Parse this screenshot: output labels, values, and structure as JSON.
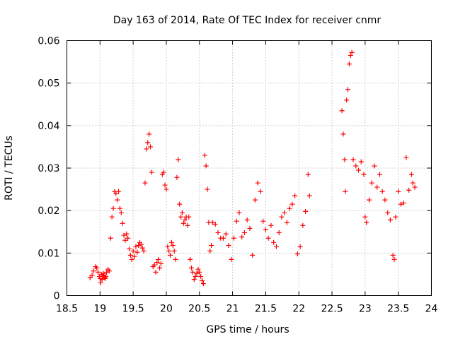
{
  "chart_data": {
    "type": "scatter",
    "title": "Day 163 of 2014, Rate Of TEC Index for receiver cnmr",
    "xlabel": "GPS time / hours",
    "ylabel": "ROTI / TECUs",
    "xlim": [
      18.5,
      24
    ],
    "ylim": [
      0,
      0.06
    ],
    "xticks": [
      "18.5",
      "19",
      "19.5",
      "20",
      "20.5",
      "21",
      "21.5",
      "22",
      "22.5",
      "23",
      "23.5",
      "24"
    ],
    "yticks": [
      "0",
      "0.01",
      "0.02",
      "0.03",
      "0.04",
      "0.05",
      "0.06"
    ],
    "grid": true,
    "marker": "+",
    "series": [
      {
        "name": "ROTI",
        "color": "#ff0000",
        "x": [
          18.85,
          18.88,
          18.9,
          18.93,
          18.95,
          18.97,
          18.99,
          19.0,
          19.01,
          19.02,
          19.03,
          19.04,
          19.05,
          19.06,
          19.07,
          19.08,
          19.09,
          19.1,
          19.12,
          19.14,
          19.16,
          19.18,
          19.2,
          19.22,
          19.24,
          19.26,
          19.28,
          19.3,
          19.32,
          19.34,
          19.36,
          19.38,
          19.4,
          19.42,
          19.44,
          19.46,
          19.48,
          19.5,
          19.52,
          19.54,
          19.56,
          19.58,
          19.6,
          19.62,
          19.64,
          19.66,
          19.68,
          19.7,
          19.72,
          19.74,
          19.76,
          19.78,
          19.8,
          19.82,
          19.84,
          19.86,
          19.88,
          19.9,
          19.92,
          19.94,
          19.96,
          19.98,
          20.0,
          20.02,
          20.04,
          20.06,
          20.08,
          20.1,
          20.12,
          20.14,
          20.16,
          20.18,
          20.2,
          20.22,
          20.24,
          20.26,
          20.28,
          20.3,
          20.32,
          20.34,
          20.36,
          20.38,
          20.4,
          20.42,
          20.44,
          20.46,
          20.48,
          20.5,
          20.52,
          20.54,
          20.56,
          20.58,
          20.6,
          20.62,
          20.64,
          20.66,
          20.68,
          20.7,
          20.74,
          20.78,
          20.82,
          20.86,
          20.9,
          20.94,
          20.98,
          21.02,
          21.06,
          21.1,
          21.14,
          21.18,
          21.22,
          21.26,
          21.3,
          21.34,
          21.38,
          21.42,
          21.46,
          21.5,
          21.54,
          21.58,
          21.62,
          21.66,
          21.7,
          21.74,
          21.78,
          21.82,
          21.86,
          21.9,
          21.94,
          21.98,
          22.02,
          22.06,
          22.1,
          22.14,
          22.16,
          22.65,
          22.67,
          22.69,
          22.7,
          22.72,
          22.74,
          22.76,
          22.78,
          22.8,
          22.82,
          22.86,
          22.9,
          22.94,
          22.98,
          23.0,
          23.02,
          23.06,
          23.1,
          23.14,
          23.18,
          23.22,
          23.26,
          23.3,
          23.34,
          23.38,
          23.42,
          23.44,
          23.46,
          23.5,
          23.54,
          23.58,
          23.62,
          23.66,
          23.7,
          23.72,
          23.75
        ],
        "y": [
          0.0042,
          0.0048,
          0.0058,
          0.0068,
          0.0065,
          0.0055,
          0.0045,
          0.004,
          0.003,
          0.005,
          0.0038,
          0.0045,
          0.0052,
          0.0048,
          0.0042,
          0.004,
          0.0045,
          0.0055,
          0.0062,
          0.0058,
          0.0135,
          0.0185,
          0.0205,
          0.0245,
          0.024,
          0.0225,
          0.0245,
          0.0205,
          0.0195,
          0.017,
          0.0142,
          0.013,
          0.0145,
          0.0135,
          0.011,
          0.0095,
          0.0085,
          0.0105,
          0.0092,
          0.0115,
          0.0102,
          0.0118,
          0.0125,
          0.012,
          0.0112,
          0.0105,
          0.0265,
          0.0345,
          0.036,
          0.038,
          0.035,
          0.029,
          0.0068,
          0.0072,
          0.0055,
          0.0078,
          0.0085,
          0.0065,
          0.0075,
          0.0285,
          0.029,
          0.026,
          0.025,
          0.0115,
          0.0105,
          0.0095,
          0.0125,
          0.0118,
          0.0105,
          0.0085,
          0.0278,
          0.032,
          0.0215,
          0.0185,
          0.0195,
          0.017,
          0.0178,
          0.0185,
          0.0165,
          0.0185,
          0.0085,
          0.0065,
          0.0055,
          0.0038,
          0.0045,
          0.0052,
          0.0062,
          0.0055,
          0.0045,
          0.0035,
          0.0028,
          0.033,
          0.0305,
          0.025,
          0.0172,
          0.0105,
          0.0118,
          0.0172,
          0.0168,
          0.0148,
          0.0135,
          0.0135,
          0.0145,
          0.0118,
          0.0085,
          0.0135,
          0.0175,
          0.0195,
          0.0138,
          0.0148,
          0.0178,
          0.0158,
          0.0095,
          0.0225,
          0.0265,
          0.0245,
          0.0175,
          0.0155,
          0.0135,
          0.0165,
          0.0125,
          0.0115,
          0.0148,
          0.0185,
          0.0195,
          0.0172,
          0.0205,
          0.0215,
          0.0235,
          0.0098,
          0.0115,
          0.0165,
          0.0198,
          0.0285,
          0.0235,
          0.0435,
          0.038,
          0.032,
          0.0245,
          0.046,
          0.0485,
          0.0545,
          0.0565,
          0.0572,
          0.032,
          0.0305,
          0.0295,
          0.0315,
          0.0285,
          0.0185,
          0.0172,
          0.0225,
          0.0265,
          0.0305,
          0.0255,
          0.0285,
          0.0245,
          0.0225,
          0.0195,
          0.0178,
          0.0095,
          0.0085,
          0.0185,
          0.0245,
          0.0215,
          0.0218,
          0.0325,
          0.0248,
          0.0285,
          0.0265,
          0.0255
        ]
      }
    ]
  }
}
